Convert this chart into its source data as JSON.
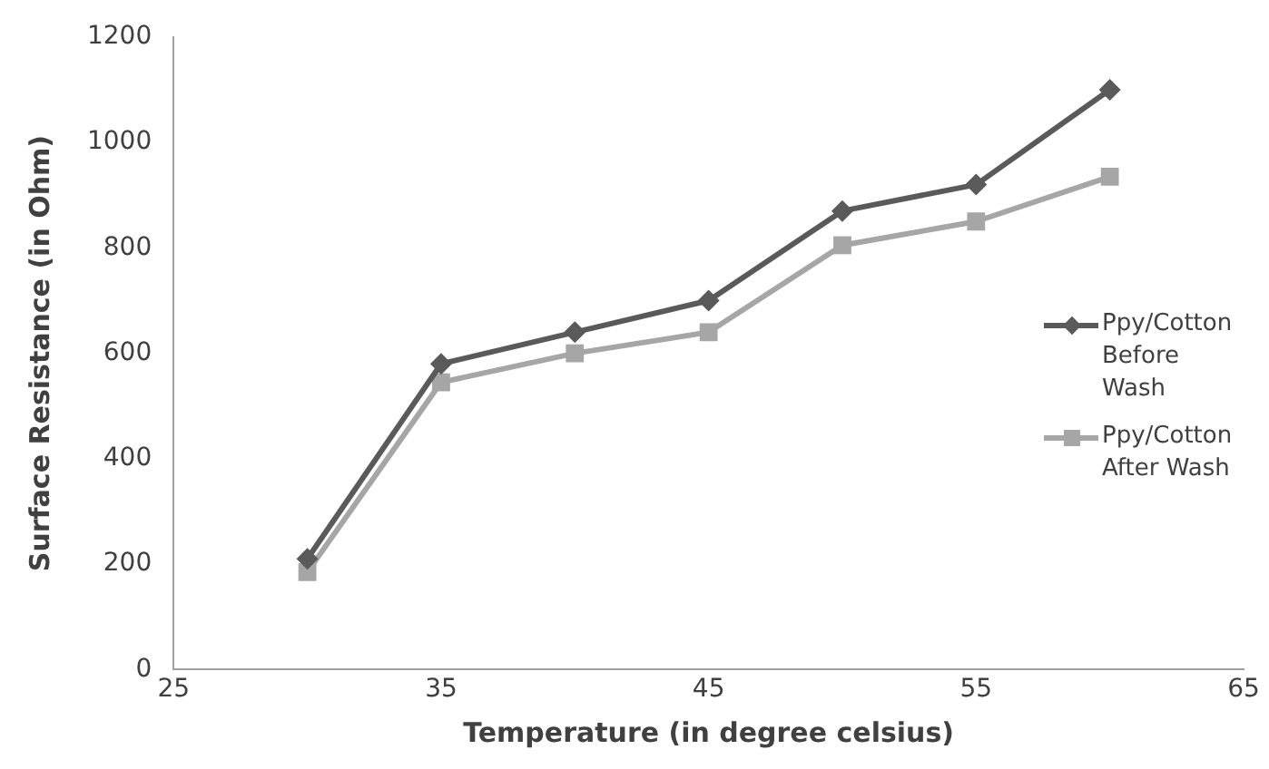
{
  "chart_data": {
    "type": "line",
    "xlabel": "Temperature (in degree celsius)",
    "ylabel": "Surface Resistance (in Ohm)",
    "x": [
      30,
      35,
      40,
      45,
      50,
      55,
      60
    ],
    "series": [
      {
        "name": "Ppy/Cotton Before Wash",
        "color": "#5a5a5a",
        "marker": "diamond",
        "values": [
          210,
          580,
          640,
          700,
          870,
          920,
          1100
        ]
      },
      {
        "name": "Ppy/Cotton After Wash",
        "color": "#a6a6a6",
        "marker": "square",
        "values": [
          185,
          545,
          600,
          640,
          805,
          850,
          935
        ]
      }
    ],
    "xlim": [
      25,
      65
    ],
    "xticks": [
      25,
      35,
      45,
      55,
      65
    ],
    "ylim": [
      0,
      1200
    ],
    "yticks": [
      0,
      200,
      400,
      600,
      800,
      1000,
      1200
    ],
    "grid": false,
    "legend": "right",
    "line_style": "solid"
  }
}
